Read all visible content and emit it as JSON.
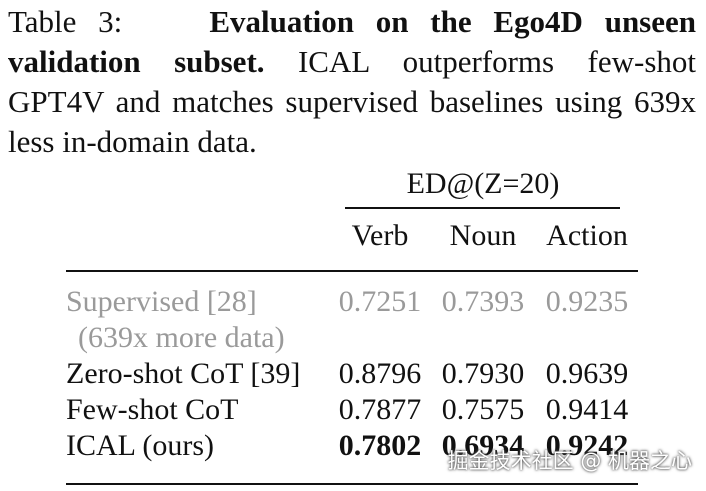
{
  "caption": {
    "label": "Table 3:",
    "title": "Evaluation on the Ego4D unseen validation subset.",
    "body": "ICAL outperforms few-shot GPT4V and matches supervised baselines using 639x less in-domain data."
  },
  "table": {
    "group_header": "ED@(Z=20)",
    "columns": [
      "Verb",
      "Noun",
      "Action"
    ],
    "rows": [
      {
        "method": "Supervised [28]",
        "note": "(639x more data)",
        "values": [
          "0.7251",
          "0.7393",
          "0.9235"
        ]
      },
      {
        "method": "Zero-shot CoT [39]",
        "values": [
          "0.8796",
          "0.7930",
          "0.9639"
        ]
      },
      {
        "method": "Few-shot CoT",
        "values": [
          "0.7877",
          "0.7575",
          "0.9414"
        ]
      },
      {
        "method": "ICAL (ours)",
        "values": [
          "0.7802",
          "0.6934",
          "0.9242"
        ]
      }
    ]
  },
  "watermark": "掘金技术社区 @ 机器之心"
}
